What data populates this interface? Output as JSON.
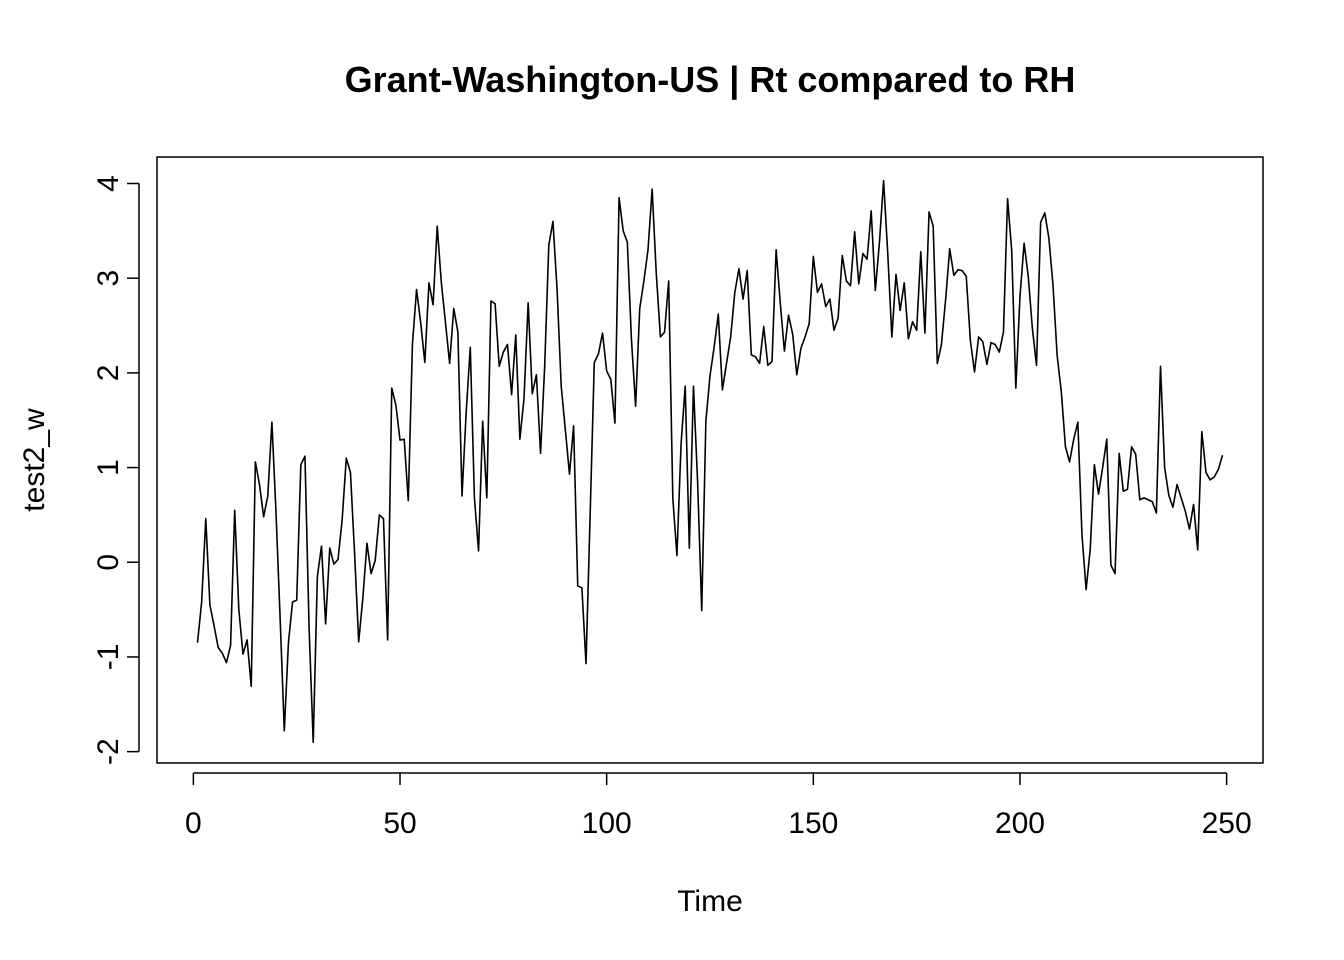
{
  "chart_data": {
    "type": "line",
    "title": "Grant-Washington-US | Rt compared to RH",
    "xlabel": "Time",
    "ylabel": "test2_w",
    "xlim": [
      -8.8,
      258.8
    ],
    "ylim": [
      -2.12,
      4.28
    ],
    "x_ticks": [
      0,
      50,
      100,
      150,
      200,
      250
    ],
    "y_ticks": [
      -2,
      -1,
      0,
      1,
      2,
      3,
      4
    ],
    "grid": false,
    "legend": "none",
    "line_color": "#000000",
    "series": [
      {
        "x_start": 1,
        "values": [
          -0.85,
          -0.42,
          0.46,
          -0.45,
          -0.67,
          -0.9,
          -0.96,
          -1.06,
          -0.88,
          0.55,
          -0.5,
          -0.97,
          -0.82,
          -1.31,
          1.06,
          0.82,
          0.48,
          0.7,
          1.48,
          0.52,
          -0.6,
          -1.78,
          -0.85,
          -0.42,
          -0.4,
          1.03,
          1.12,
          -0.7,
          -1.9,
          -0.15,
          0.17,
          -0.65,
          0.15,
          -0.02,
          0.03,
          0.45,
          1.1,
          0.95,
          0.1,
          -0.84,
          -0.38,
          0.2,
          -0.12,
          0.02,
          0.5,
          0.46,
          -0.82,
          1.84,
          1.66,
          1.29,
          1.3,
          0.65,
          2.3,
          2.88,
          2.53,
          2.11,
          2.95,
          2.72,
          3.55,
          2.95,
          2.53,
          2.1,
          2.68,
          2.43,
          0.7,
          1.58,
          2.27,
          0.68,
          0.12,
          1.49,
          0.68,
          2.76,
          2.73,
          2.07,
          2.22,
          2.3,
          1.77,
          2.4,
          1.3,
          1.73,
          2.74,
          1.78,
          1.98,
          1.15,
          2.07,
          3.35,
          3.6,
          2.88,
          1.86,
          1.4,
          0.93,
          1.44,
          -0.25,
          -0.27,
          -1.07,
          0.5,
          2.11,
          2.2,
          2.42,
          2.02,
          1.93,
          1.47,
          3.85,
          3.5,
          3.38,
          2.35,
          1.65,
          2.68,
          2.97,
          3.3,
          3.94,
          3.05,
          2.38,
          2.43,
          2.97,
          0.68,
          0.07,
          1.25,
          1.86,
          0.15,
          1.86,
          0.85,
          -0.51,
          1.49,
          1.97,
          2.27,
          2.62,
          1.82,
          2.1,
          2.38,
          2.85,
          3.1,
          2.78,
          3.08,
          2.19,
          2.17,
          2.1,
          2.49,
          2.08,
          2.12,
          3.3,
          2.74,
          2.23,
          2.61,
          2.41,
          1.98,
          2.26,
          2.38,
          2.52,
          3.23,
          2.85,
          2.94,
          2.7,
          2.78,
          2.45,
          2.58,
          3.24,
          2.97,
          2.92,
          3.49,
          2.94,
          3.26,
          3.2,
          3.71,
          2.87,
          3.38,
          4.03,
          3.27,
          2.38,
          3.04,
          2.66,
          2.95,
          2.36,
          2.54,
          2.45,
          3.28,
          2.42,
          3.7,
          3.55,
          2.1,
          2.3,
          2.77,
          3.31,
          3.03,
          3.09,
          3.08,
          3.02,
          2.34,
          2.01,
          2.38,
          2.33,
          2.09,
          2.32,
          2.3,
          2.22,
          2.43,
          3.84,
          3.29,
          1.84,
          2.81,
          3.37,
          3.02,
          2.47,
          2.08,
          3.59,
          3.69,
          3.42,
          2.92,
          2.18,
          1.8,
          1.22,
          1.06,
          1.3,
          1.48,
          0.29,
          -0.29,
          0.14,
          1.03,
          0.72,
          1.0,
          1.3,
          -0.03,
          -0.12,
          1.15,
          0.75,
          0.77,
          1.22,
          1.14,
          0.66,
          0.68,
          0.66,
          0.64,
          0.52,
          2.07,
          1.0,
          0.71,
          0.58,
          0.82,
          0.68,
          0.54,
          0.35,
          0.61,
          0.13,
          1.38,
          0.95,
          0.87,
          0.9,
          0.98,
          1.13
        ]
      }
    ]
  }
}
